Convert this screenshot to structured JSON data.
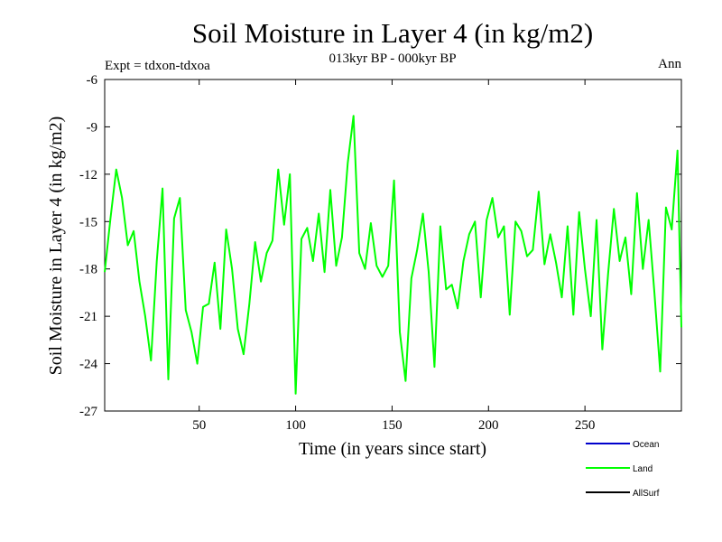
{
  "chart_data": {
    "type": "line",
    "title": "Soil Moisture in Layer 4 (in kg/m2)",
    "subtitle": "013kyr BP - 000kyr BP",
    "experiment_label": "Expt = tdxon-tdxoa",
    "period_label": "Ann",
    "xlabel": "Time (in years since start)",
    "ylabel": "Soil Moisture in Layer 4 (in kg/m2)",
    "xlim": [
      1,
      300
    ],
    "ylim": [
      -27,
      -6
    ],
    "xticks": [
      50,
      100,
      150,
      200,
      250
    ],
    "yticks": [
      -6,
      -9,
      -12,
      -15,
      -18,
      -21,
      -24,
      -27
    ],
    "grid": false,
    "legend_position": "bottom-right",
    "legend": [
      {
        "name": "Ocean",
        "color": "#0000cc"
      },
      {
        "name": "Land",
        "color": "#00ff00"
      },
      {
        "name": "AllSurf",
        "color": "#000000"
      }
    ],
    "series": [
      {
        "name": "Land",
        "color": "#00ff00",
        "x": [
          1,
          4,
          7,
          10,
          13,
          16,
          19,
          22,
          25,
          28,
          31,
          34,
          37,
          40,
          43,
          46,
          49,
          52,
          55,
          58,
          61,
          64,
          67,
          70,
          73,
          76,
          79,
          82,
          85,
          88,
          91,
          94,
          97,
          100,
          103,
          106,
          109,
          112,
          115,
          118,
          121,
          124,
          127,
          130,
          133,
          136,
          139,
          142,
          145,
          148,
          151,
          154,
          157,
          160,
          163,
          166,
          169,
          172,
          175,
          178,
          181,
          184,
          187,
          190,
          193,
          196,
          199,
          202,
          205,
          208,
          211,
          214,
          217,
          220,
          223,
          226,
          229,
          232,
          235,
          238,
          241,
          244,
          247,
          250,
          253,
          256,
          259,
          262,
          265,
          268,
          271,
          274,
          277,
          280,
          283,
          286,
          289,
          292,
          295,
          298,
          300
        ],
        "values": [
          -18.2,
          -14.8,
          -11.7,
          -13.5,
          -16.5,
          -15.6,
          -18.8,
          -21.0,
          -23.8,
          -17.5,
          -12.9,
          -25.0,
          -14.8,
          -13.5,
          -20.6,
          -22.0,
          -24.0,
          -20.4,
          -20.2,
          -17.6,
          -21.8,
          -15.5,
          -18.0,
          -21.8,
          -23.4,
          -20.2,
          -16.3,
          -18.8,
          -17.0,
          -16.2,
          -11.7,
          -15.2,
          -12.0,
          -25.9,
          -16.1,
          -15.4,
          -17.5,
          -14.5,
          -18.2,
          -13.0,
          -17.8,
          -16.0,
          -11.3,
          -8.3,
          -17.0,
          -18.0,
          -15.1,
          -17.8,
          -18.5,
          -17.8,
          -12.4,
          -22.0,
          -25.1,
          -18.6,
          -16.8,
          -14.5,
          -18.2,
          -24.2,
          -15.3,
          -19.3,
          -19.0,
          -20.5,
          -17.5,
          -15.8,
          -15.0,
          -19.8,
          -14.9,
          -13.5,
          -16.0,
          -15.3,
          -20.9,
          -15.0,
          -15.6,
          -17.2,
          -16.8,
          -13.1,
          -17.7,
          -15.8,
          -17.6,
          -19.8,
          -15.3,
          -20.9,
          -14.4,
          -18.0,
          -21.0,
          -14.9,
          -23.1,
          -18.3,
          -14.2,
          -17.5,
          -16.0,
          -19.6,
          -13.2,
          -18.0,
          -14.9,
          -19.5,
          -24.5,
          -14.1,
          -15.5,
          -10.5,
          -21.7
        ]
      }
    ]
  }
}
